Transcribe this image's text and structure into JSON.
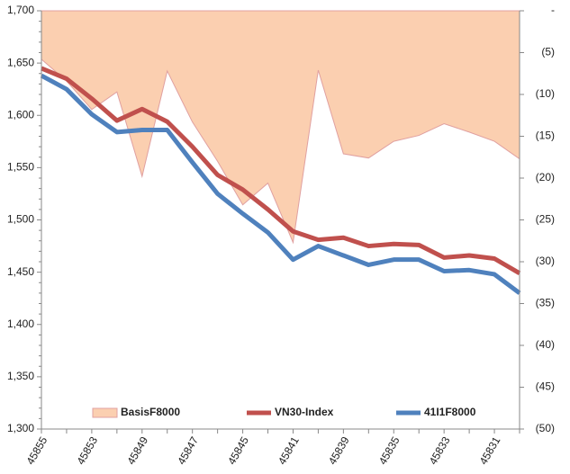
{
  "chart_data": {
    "type": "combo",
    "categories": [
      "45855",
      null,
      "45853",
      null,
      "45849",
      null,
      "45847",
      null,
      "45845",
      null,
      "45841",
      null,
      "45839",
      null,
      "45835",
      null,
      "45833",
      null,
      "45831",
      null
    ],
    "series": [
      {
        "name": "BasisF8000",
        "type": "area",
        "axis": "y2",
        "color": "#fbcfb0",
        "values": [
          -5.8,
          -8.4,
          -11.8,
          -9.7,
          -19.8,
          -7.2,
          -13.3,
          -18.0,
          -23.2,
          -20.6,
          -27.7,
          -7.1,
          -17.1,
          -17.6,
          -15.6,
          -14.9,
          -13.5,
          -14.5,
          -15.6,
          -17.7
        ]
      },
      {
        "name": "VN30-Index",
        "type": "line",
        "color": "#c0504d",
        "values": [
          1645,
          1635,
          1616,
          1595,
          1606,
          1594,
          1570,
          1543,
          1529,
          1510,
          1489,
          1481,
          1483,
          1475,
          1477,
          1476,
          1464,
          1466,
          1463,
          1449
        ]
      },
      {
        "name": "41I1F8000",
        "type": "line",
        "color": "#4f81bd",
        "values": [
          1638,
          1625,
          1601,
          1584,
          1586,
          1586,
          1555,
          1525,
          1506,
          1488,
          1462,
          1475,
          1466,
          1457,
          1462,
          1462,
          1451,
          1452,
          1448,
          1430
        ]
      }
    ],
    "ylim": [
      1300,
      1700
    ],
    "yticks": [
      {
        "value": 1300,
        "label": "1,300"
      },
      {
        "value": 1350,
        "label": "1,350"
      },
      {
        "value": 1400,
        "label": "1,400"
      },
      {
        "value": 1450,
        "label": "1,450"
      },
      {
        "value": 1500,
        "label": "1,500"
      },
      {
        "value": 1550,
        "label": "1,550"
      },
      {
        "value": 1600,
        "label": "1,600"
      },
      {
        "value": 1650,
        "label": "1,650"
      },
      {
        "value": 1700,
        "label": "1,700"
      }
    ],
    "y2lim": [
      -50,
      0
    ],
    "y2ticks": [
      {
        "value": 0,
        "label": "-"
      },
      {
        "value": -5,
        "label": "(5)"
      },
      {
        "value": -10,
        "label": "(10)"
      },
      {
        "value": -15,
        "label": "(15)"
      },
      {
        "value": -20,
        "label": "(20)"
      },
      {
        "value": -25,
        "label": "(25)"
      },
      {
        "value": -30,
        "label": "(30)"
      },
      {
        "value": -35,
        "label": "(35)"
      },
      {
        "value": -40,
        "label": "(40)"
      },
      {
        "value": -45,
        "label": "(45)"
      },
      {
        "value": -50,
        "label": "(50)"
      }
    ],
    "legend": "bottom"
  }
}
